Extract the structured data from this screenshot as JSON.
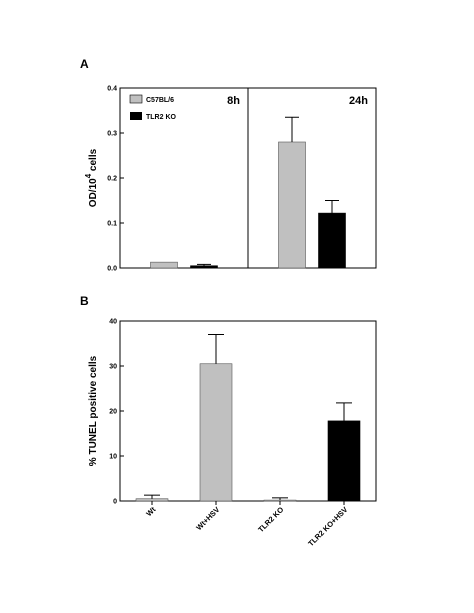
{
  "chart_data": [
    {
      "panel": "A",
      "type": "bar",
      "ylabel": "OD/10",
      "ylabel_sup": "4",
      "ylabel_tail": " cells",
      "ylim": [
        0,
        0.4
      ],
      "yticks": [
        "0.0",
        "0.1",
        "0.2",
        "0.3",
        "0.4"
      ],
      "facets": [
        "8h",
        "24h"
      ],
      "series": [
        {
          "name": "C57BL/6",
          "color": "#c0c0c0",
          "values": [
            0.013,
            0.28
          ],
          "errors": [
            0,
            0.055
          ]
        },
        {
          "name": "TLR2 KO",
          "color": "#000000",
          "values": [
            0.005,
            0.122
          ],
          "errors": [
            0.003,
            0.028
          ]
        }
      ],
      "legend_position": "top-left"
    },
    {
      "panel": "B",
      "type": "bar",
      "ylabel": "% TUNEL positive cells",
      "ylim": [
        0,
        40
      ],
      "yticks": [
        "0",
        "10",
        "20",
        "30",
        "40"
      ],
      "categories": [
        "Wt",
        "Wt+HSV",
        "TLR2 KO",
        "TLR2 KO+HSV"
      ],
      "values": [
        0.5,
        30.5,
        0.2,
        17.8
      ],
      "errors": [
        0.8,
        6.5,
        0.5,
        4.0
      ],
      "colors": [
        "#c0c0c0",
        "#c0c0c0",
        "#c0c0c0",
        "#000000"
      ]
    }
  ]
}
